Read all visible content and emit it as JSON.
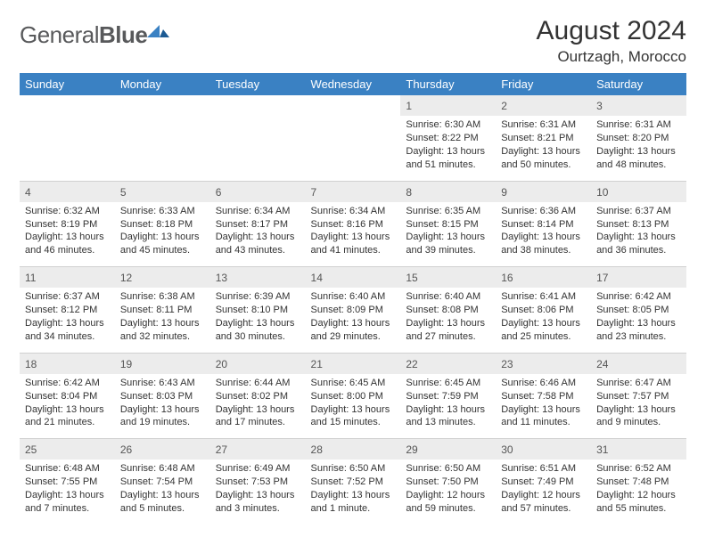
{
  "logo": {
    "part1": "General",
    "part2": "Blue"
  },
  "header": {
    "month": "August 2024",
    "location": "Ourtzagh, Morocco"
  },
  "style": {
    "header_bg": "#3a81c3",
    "header_fg": "#ffffff",
    "daynum_bg": "#ececec",
    "text_color": "#333333",
    "page_bg": "#ffffff"
  },
  "weekdays": [
    "Sunday",
    "Monday",
    "Tuesday",
    "Wednesday",
    "Thursday",
    "Friday",
    "Saturday"
  ],
  "weeks": [
    [
      null,
      null,
      null,
      null,
      {
        "n": "1",
        "sr": "6:30 AM",
        "ss": "8:22 PM",
        "dl": "13 hours and 51 minutes."
      },
      {
        "n": "2",
        "sr": "6:31 AM",
        "ss": "8:21 PM",
        "dl": "13 hours and 50 minutes."
      },
      {
        "n": "3",
        "sr": "6:31 AM",
        "ss": "8:20 PM",
        "dl": "13 hours and 48 minutes."
      }
    ],
    [
      {
        "n": "4",
        "sr": "6:32 AM",
        "ss": "8:19 PM",
        "dl": "13 hours and 46 minutes."
      },
      {
        "n": "5",
        "sr": "6:33 AM",
        "ss": "8:18 PM",
        "dl": "13 hours and 45 minutes."
      },
      {
        "n": "6",
        "sr": "6:34 AM",
        "ss": "8:17 PM",
        "dl": "13 hours and 43 minutes."
      },
      {
        "n": "7",
        "sr": "6:34 AM",
        "ss": "8:16 PM",
        "dl": "13 hours and 41 minutes."
      },
      {
        "n": "8",
        "sr": "6:35 AM",
        "ss": "8:15 PM",
        "dl": "13 hours and 39 minutes."
      },
      {
        "n": "9",
        "sr": "6:36 AM",
        "ss": "8:14 PM",
        "dl": "13 hours and 38 minutes."
      },
      {
        "n": "10",
        "sr": "6:37 AM",
        "ss": "8:13 PM",
        "dl": "13 hours and 36 minutes."
      }
    ],
    [
      {
        "n": "11",
        "sr": "6:37 AM",
        "ss": "8:12 PM",
        "dl": "13 hours and 34 minutes."
      },
      {
        "n": "12",
        "sr": "6:38 AM",
        "ss": "8:11 PM",
        "dl": "13 hours and 32 minutes."
      },
      {
        "n": "13",
        "sr": "6:39 AM",
        "ss": "8:10 PM",
        "dl": "13 hours and 30 minutes."
      },
      {
        "n": "14",
        "sr": "6:40 AM",
        "ss": "8:09 PM",
        "dl": "13 hours and 29 minutes."
      },
      {
        "n": "15",
        "sr": "6:40 AM",
        "ss": "8:08 PM",
        "dl": "13 hours and 27 minutes."
      },
      {
        "n": "16",
        "sr": "6:41 AM",
        "ss": "8:06 PM",
        "dl": "13 hours and 25 minutes."
      },
      {
        "n": "17",
        "sr": "6:42 AM",
        "ss": "8:05 PM",
        "dl": "13 hours and 23 minutes."
      }
    ],
    [
      {
        "n": "18",
        "sr": "6:42 AM",
        "ss": "8:04 PM",
        "dl": "13 hours and 21 minutes."
      },
      {
        "n": "19",
        "sr": "6:43 AM",
        "ss": "8:03 PM",
        "dl": "13 hours and 19 minutes."
      },
      {
        "n": "20",
        "sr": "6:44 AM",
        "ss": "8:02 PM",
        "dl": "13 hours and 17 minutes."
      },
      {
        "n": "21",
        "sr": "6:45 AM",
        "ss": "8:00 PM",
        "dl": "13 hours and 15 minutes."
      },
      {
        "n": "22",
        "sr": "6:45 AM",
        "ss": "7:59 PM",
        "dl": "13 hours and 13 minutes."
      },
      {
        "n": "23",
        "sr": "6:46 AM",
        "ss": "7:58 PM",
        "dl": "13 hours and 11 minutes."
      },
      {
        "n": "24",
        "sr": "6:47 AM",
        "ss": "7:57 PM",
        "dl": "13 hours and 9 minutes."
      }
    ],
    [
      {
        "n": "25",
        "sr": "6:48 AM",
        "ss": "7:55 PM",
        "dl": "13 hours and 7 minutes."
      },
      {
        "n": "26",
        "sr": "6:48 AM",
        "ss": "7:54 PM",
        "dl": "13 hours and 5 minutes."
      },
      {
        "n": "27",
        "sr": "6:49 AM",
        "ss": "7:53 PM",
        "dl": "13 hours and 3 minutes."
      },
      {
        "n": "28",
        "sr": "6:50 AM",
        "ss": "7:52 PM",
        "dl": "13 hours and 1 minute."
      },
      {
        "n": "29",
        "sr": "6:50 AM",
        "ss": "7:50 PM",
        "dl": "12 hours and 59 minutes."
      },
      {
        "n": "30",
        "sr": "6:51 AM",
        "ss": "7:49 PM",
        "dl": "12 hours and 57 minutes."
      },
      {
        "n": "31",
        "sr": "6:52 AM",
        "ss": "7:48 PM",
        "dl": "12 hours and 55 minutes."
      }
    ]
  ],
  "labels": {
    "sunrise": "Sunrise:",
    "sunset": "Sunset:",
    "daylight": "Daylight:"
  }
}
